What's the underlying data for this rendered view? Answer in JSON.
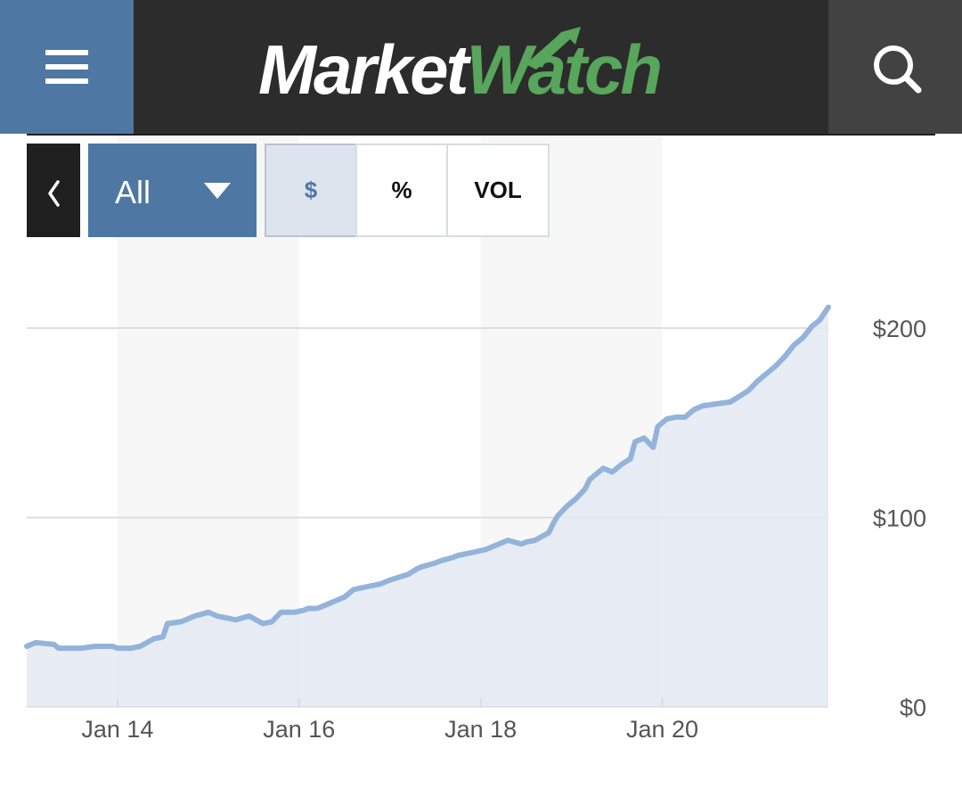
{
  "header": {
    "logo_part1": "Market",
    "logo_part2": "Watch",
    "menu_icon": "hamburger-menu-icon",
    "search_icon": "search-icon"
  },
  "toolbar": {
    "back_icon": "chevron-left-icon",
    "range_label": "All",
    "range_icon": "caret-down-icon",
    "modes": [
      {
        "label": "$",
        "active": true
      },
      {
        "label": "%",
        "active": false
      },
      {
        "label": "VOL",
        "active": false
      }
    ]
  },
  "colors": {
    "header_bg": "#2c2c2c",
    "brand_blue": "#4e77a3",
    "brand_green": "#58a55c",
    "line": "#93b3db",
    "area": "#e4eaf3"
  },
  "chart_data": {
    "type": "area",
    "title": "",
    "xlabel": "",
    "ylabel": "",
    "x_ticks": [
      "Jan 14",
      "Jan 16",
      "Jan 18",
      "Jan 20"
    ],
    "x_tick_positions": [
      1,
      3,
      5,
      7
    ],
    "xlim": [
      0,
      8.83
    ],
    "y_ticks": [
      "$0",
      "$100",
      "$200"
    ],
    "y_tick_values": [
      0,
      100,
      200
    ],
    "ylim": [
      0,
      215
    ],
    "grid": "horizontal",
    "series": [
      {
        "x": [
          0,
          0.1,
          0.3,
          0.35,
          0.4,
          0.6,
          0.75,
          0.95,
          1.0,
          1.15,
          1.25,
          1.4,
          1.5,
          1.55,
          1.7,
          1.75,
          1.85,
          2.0,
          2.1,
          2.3,
          2.45,
          2.6,
          2.7,
          2.8,
          2.95,
          3.05,
          3.1,
          3.2,
          3.3,
          3.4,
          3.5,
          3.6,
          3.8,
          3.9,
          4.0,
          4.2,
          4.3,
          4.35,
          4.5,
          4.55,
          4.7,
          4.75,
          4.85,
          4.95,
          5.05,
          5.15,
          5.25,
          5.3,
          5.45,
          5.5,
          5.6,
          5.75,
          5.8,
          5.85,
          5.95,
          6.05,
          6.15,
          6.2,
          6.3,
          6.35,
          6.45,
          6.55,
          6.65,
          6.7,
          6.8,
          6.9,
          6.95,
          7.05,
          7.15,
          7.25,
          7.35,
          7.45,
          7.6,
          7.75,
          7.85,
          7.95,
          8.05,
          8.15,
          8.25,
          8.35,
          8.45,
          8.55,
          8.65,
          8.73,
          8.83
        ],
        "values": [
          32,
          34,
          33,
          31,
          31,
          31,
          32,
          32,
          31,
          31,
          32,
          36,
          37,
          44,
          45,
          46,
          48,
          50,
          48,
          46,
          48,
          44,
          45,
          50,
          50,
          51,
          52,
          52,
          54,
          56,
          58,
          62,
          64,
          65,
          67,
          70,
          73,
          74,
          76,
          77,
          79,
          80,
          81,
          82,
          83,
          85,
          87,
          88,
          86,
          87,
          88,
          92,
          97,
          101,
          106,
          110,
          115,
          120,
          124,
          126,
          124,
          128,
          131,
          140,
          142,
          137,
          148,
          152,
          153,
          153,
          157,
          159,
          160,
          161,
          164,
          167,
          172,
          176,
          180,
          185,
          191,
          195,
          201,
          204,
          211
        ]
      }
    ]
  }
}
